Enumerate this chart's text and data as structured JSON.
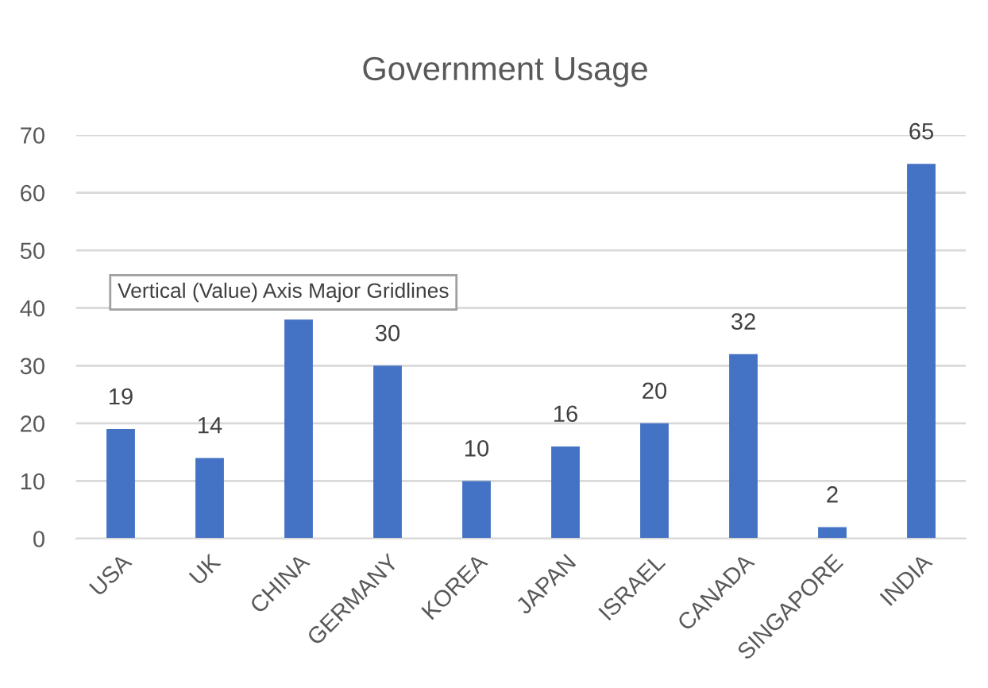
{
  "chart_data": {
    "type": "bar",
    "title": "Government Usage",
    "categories": [
      "USA",
      "UK",
      "CHINA",
      "GERMANY",
      "KOREA",
      "JAPAN",
      "ISRAEL",
      "CANADA",
      "SINGAPORE",
      "INDIA"
    ],
    "values": [
      19,
      14,
      38,
      30,
      10,
      16,
      20,
      32,
      2,
      65
    ],
    "value_labels": [
      "19",
      "14",
      null,
      "30",
      "10",
      "16",
      "20",
      "32",
      "2",
      "65"
    ],
    "color": "#4472c4",
    "ylim": [
      0,
      70
    ],
    "yticks": [
      0,
      10,
      20,
      30,
      40,
      50,
      60,
      70
    ],
    "grid": "y",
    "legend": false,
    "annotations": [
      "Vertical (Value) Axis Major Gridlines"
    ]
  }
}
